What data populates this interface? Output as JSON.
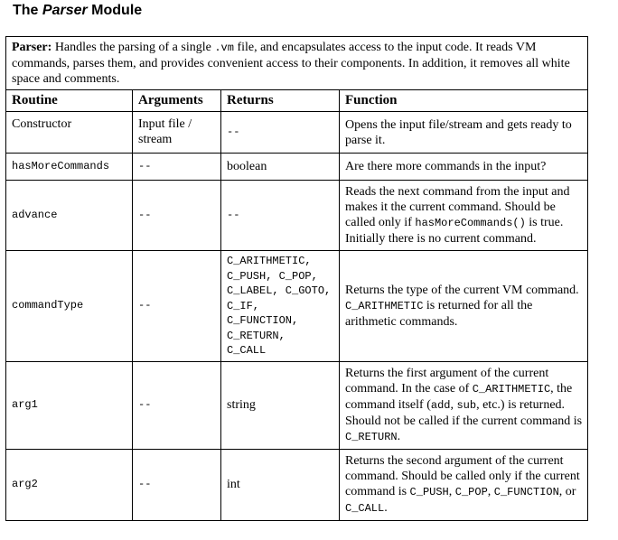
{
  "heading": {
    "prefix": "The ",
    "module": "Parser",
    "suffix": " Module"
  },
  "description": {
    "label": "Parser:",
    "t1": " Handles the parsing of a single ",
    "ext": ".vm",
    "t2": " file, and encapsulates access to the input code. It reads VM commands, parses them, and provides convenient access to their components. In addition, it removes all white space and comments."
  },
  "columns": [
    "Routine",
    "Arguments",
    "Returns",
    "Function"
  ],
  "rows": {
    "constructor": {
      "routine": "Constructor",
      "arguments": "Input file / stream",
      "returns": "--",
      "function": "Opens the input file/stream and gets ready to parse it."
    },
    "hasMoreCommands": {
      "routine": "hasMoreCommands",
      "arguments": "--",
      "returns": "boolean",
      "function": "Are there more commands in the input?"
    },
    "advance": {
      "routine": "advance",
      "arguments": "--",
      "returns": "--",
      "f1": "Reads the next command from the input and makes it the current command. Should be called only if ",
      "f_code": "hasMoreCommands()",
      "f2": " is true. Initially there is no current command."
    },
    "commandType": {
      "routine": "commandType",
      "arguments": "--",
      "returns": [
        "C_ARITHMETIC,",
        "C_PUSH, C_POP,",
        "C_LABEL, C_GOTO,",
        "C_IF,",
        "C_FUNCTION,",
        "C_RETURN,",
        "C_CALL"
      ],
      "f1": "Returns the type of the current VM command. ",
      "f_code": "C_ARITHMETIC",
      "f2": " is returned for all the arithmetic commands."
    },
    "arg1": {
      "routine": "arg1",
      "arguments": "--",
      "returns": "string",
      "f1": "Returns the first argument of the current command. In the case of ",
      "f_code1": "C_ARITHMETIC",
      "f2": ", the command itself (",
      "f_code2": "add",
      "f3": ", ",
      "f_code3": "sub",
      "f4": ", etc.) is returned. Should not be called if the current command is ",
      "f_code4": "C_RETURN",
      "f5": "."
    },
    "arg2": {
      "routine": "arg2",
      "arguments": "--",
      "returns": "int",
      "f1": "Returns the second argument of the current command. Should be called only if the current command is ",
      "f_code1": "C_PUSH",
      "f2": ", ",
      "f_code2": "C_POP",
      "f3": ", ",
      "f_code3": "C_FUNCTION",
      "f4": ", or ",
      "f_code4": "C_CALL",
      "f5": "."
    }
  }
}
